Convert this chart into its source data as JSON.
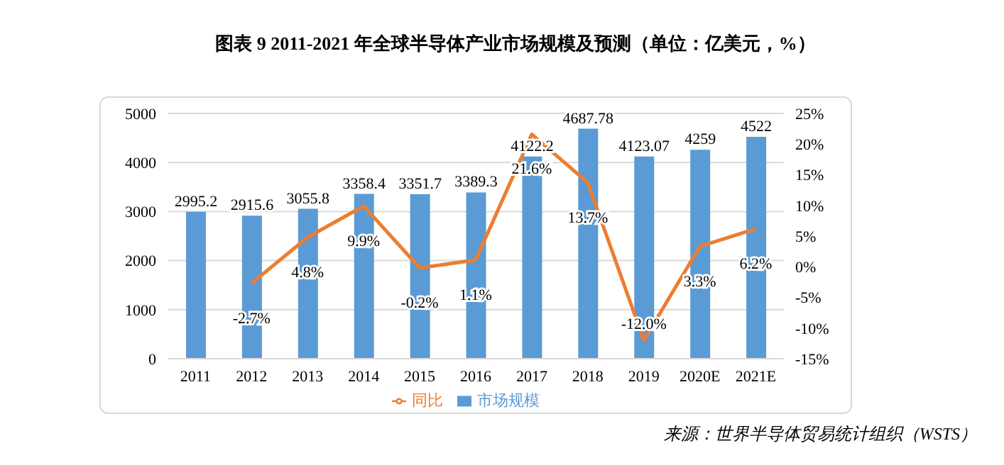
{
  "chart_data": {
    "type": "bar",
    "title": "图表 9 2011-2021 年全球半导体产业市场规模及预测（单位：亿美元，%）",
    "categories": [
      "2011",
      "2012",
      "2013",
      "2014",
      "2015",
      "2016",
      "2017",
      "2018",
      "2019",
      "2020E",
      "2021E"
    ],
    "series": [
      {
        "name": "市场规模",
        "color": "#5b9bd5",
        "values": [
          2995.2,
          2915.6,
          3055.8,
          3358.4,
          3351.7,
          3389.3,
          4122.2,
          4687.78,
          4123.07,
          4259,
          4522
        ],
        "value_labels": [
          "2995.2",
          "2915.6",
          "3055.8",
          "3358.4",
          "3351.7",
          "3389.3",
          "4122.2",
          "4687.78",
          "4123.07",
          "4259",
          "4522"
        ]
      },
      {
        "name": "同比",
        "type": "line",
        "axis": "y2",
        "color": "#ed7d31",
        "values": [
          null,
          -2.7,
          4.8,
          9.9,
          -0.2,
          1.1,
          21.6,
          13.7,
          -12.0,
          3.3,
          6.2
        ],
        "value_labels": [
          null,
          "-2.7%",
          "4.8%",
          "9.9%",
          "-0.2%",
          "1.1%",
          "21.6%",
          "13.7%",
          "-12.0%",
          "3.3%",
          "6.2%"
        ]
      }
    ],
    "ylim": [
      0,
      5000
    ],
    "yticks": [
      0,
      1000,
      2000,
      3000,
      4000,
      5000
    ],
    "y2lim": [
      -15,
      25
    ],
    "y2ticks": [
      {
        "value": -15,
        "label": "-15%"
      },
      {
        "value": -10,
        "label": "-10%"
      },
      {
        "value": -5,
        "label": "-5%"
      },
      {
        "value": 0,
        "label": "0%"
      },
      {
        "value": 5,
        "label": "5%"
      },
      {
        "value": 10,
        "label": "10%"
      },
      {
        "value": 15,
        "label": "15%"
      },
      {
        "value": 20,
        "label": "20%"
      },
      {
        "value": 25,
        "label": "25%"
      }
    ],
    "grid": "y",
    "legend": "bottom",
    "marker": "none",
    "line_style": "solid",
    "annotations": [
      "来源：世界半导体贸易统计组织（WSTS）"
    ]
  }
}
